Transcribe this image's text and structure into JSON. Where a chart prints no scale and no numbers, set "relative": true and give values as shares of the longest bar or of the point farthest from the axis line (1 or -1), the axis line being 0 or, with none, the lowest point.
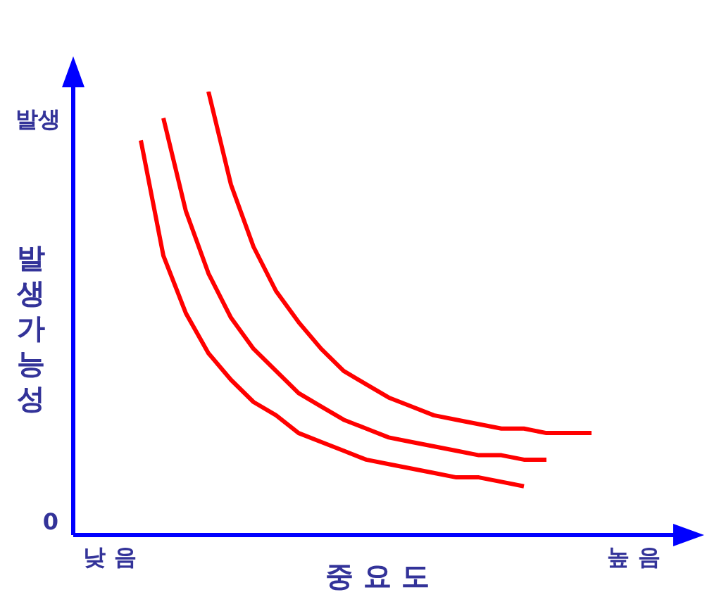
{
  "chart_data": {
    "type": "line",
    "relative": true,
    "xlabel": "중 요 도",
    "ylabel": "발생가능성",
    "annotations": [
      "발생",
      "0",
      "낮 음",
      "높 음"
    ],
    "legend": false,
    "grid": false,
    "marker": "none",
    "line_style": "solid",
    "categories": [
      null,
      null,
      null,
      null,
      null,
      null,
      null,
      null,
      null,
      null,
      null,
      null,
      null,
      null,
      null,
      null,
      null,
      null,
      null,
      null,
      null,
      null,
      null,
      null,
      null,
      null,
      null,
      null
    ],
    "series": [
      {
        "color": "#ff0000",
        "values": [
          null,
          null,
          null,
          0.89,
          0.63,
          0.5,
          0.41,
          0.35,
          0.3,
          0.27,
          0.23,
          0.21,
          0.19,
          0.17,
          0.16,
          0.15,
          0.14,
          0.13,
          0.13,
          0.12,
          0.11,
          null,
          null,
          null,
          null,
          null,
          null,
          null
        ]
      },
      {
        "color": "#ff0000",
        "values": [
          null,
          null,
          null,
          null,
          0.94,
          0.73,
          0.59,
          0.49,
          0.42,
          0.37,
          0.32,
          0.29,
          0.26,
          0.24,
          0.22,
          0.21,
          0.2,
          0.19,
          0.18,
          0.18,
          0.17,
          0.17,
          null,
          null,
          null,
          null,
          null,
          null
        ]
      },
      {
        "color": "#ff0000",
        "values": [
          null,
          null,
          null,
          null,
          null,
          null,
          1,
          0.79,
          0.65,
          0.55,
          0.48,
          0.42,
          0.37,
          0.34,
          0.31,
          0.29,
          0.27,
          0.26,
          0.25,
          0.24,
          0.24,
          0.23,
          0.23,
          0.23,
          null,
          null,
          null,
          null
        ]
      }
    ]
  }
}
